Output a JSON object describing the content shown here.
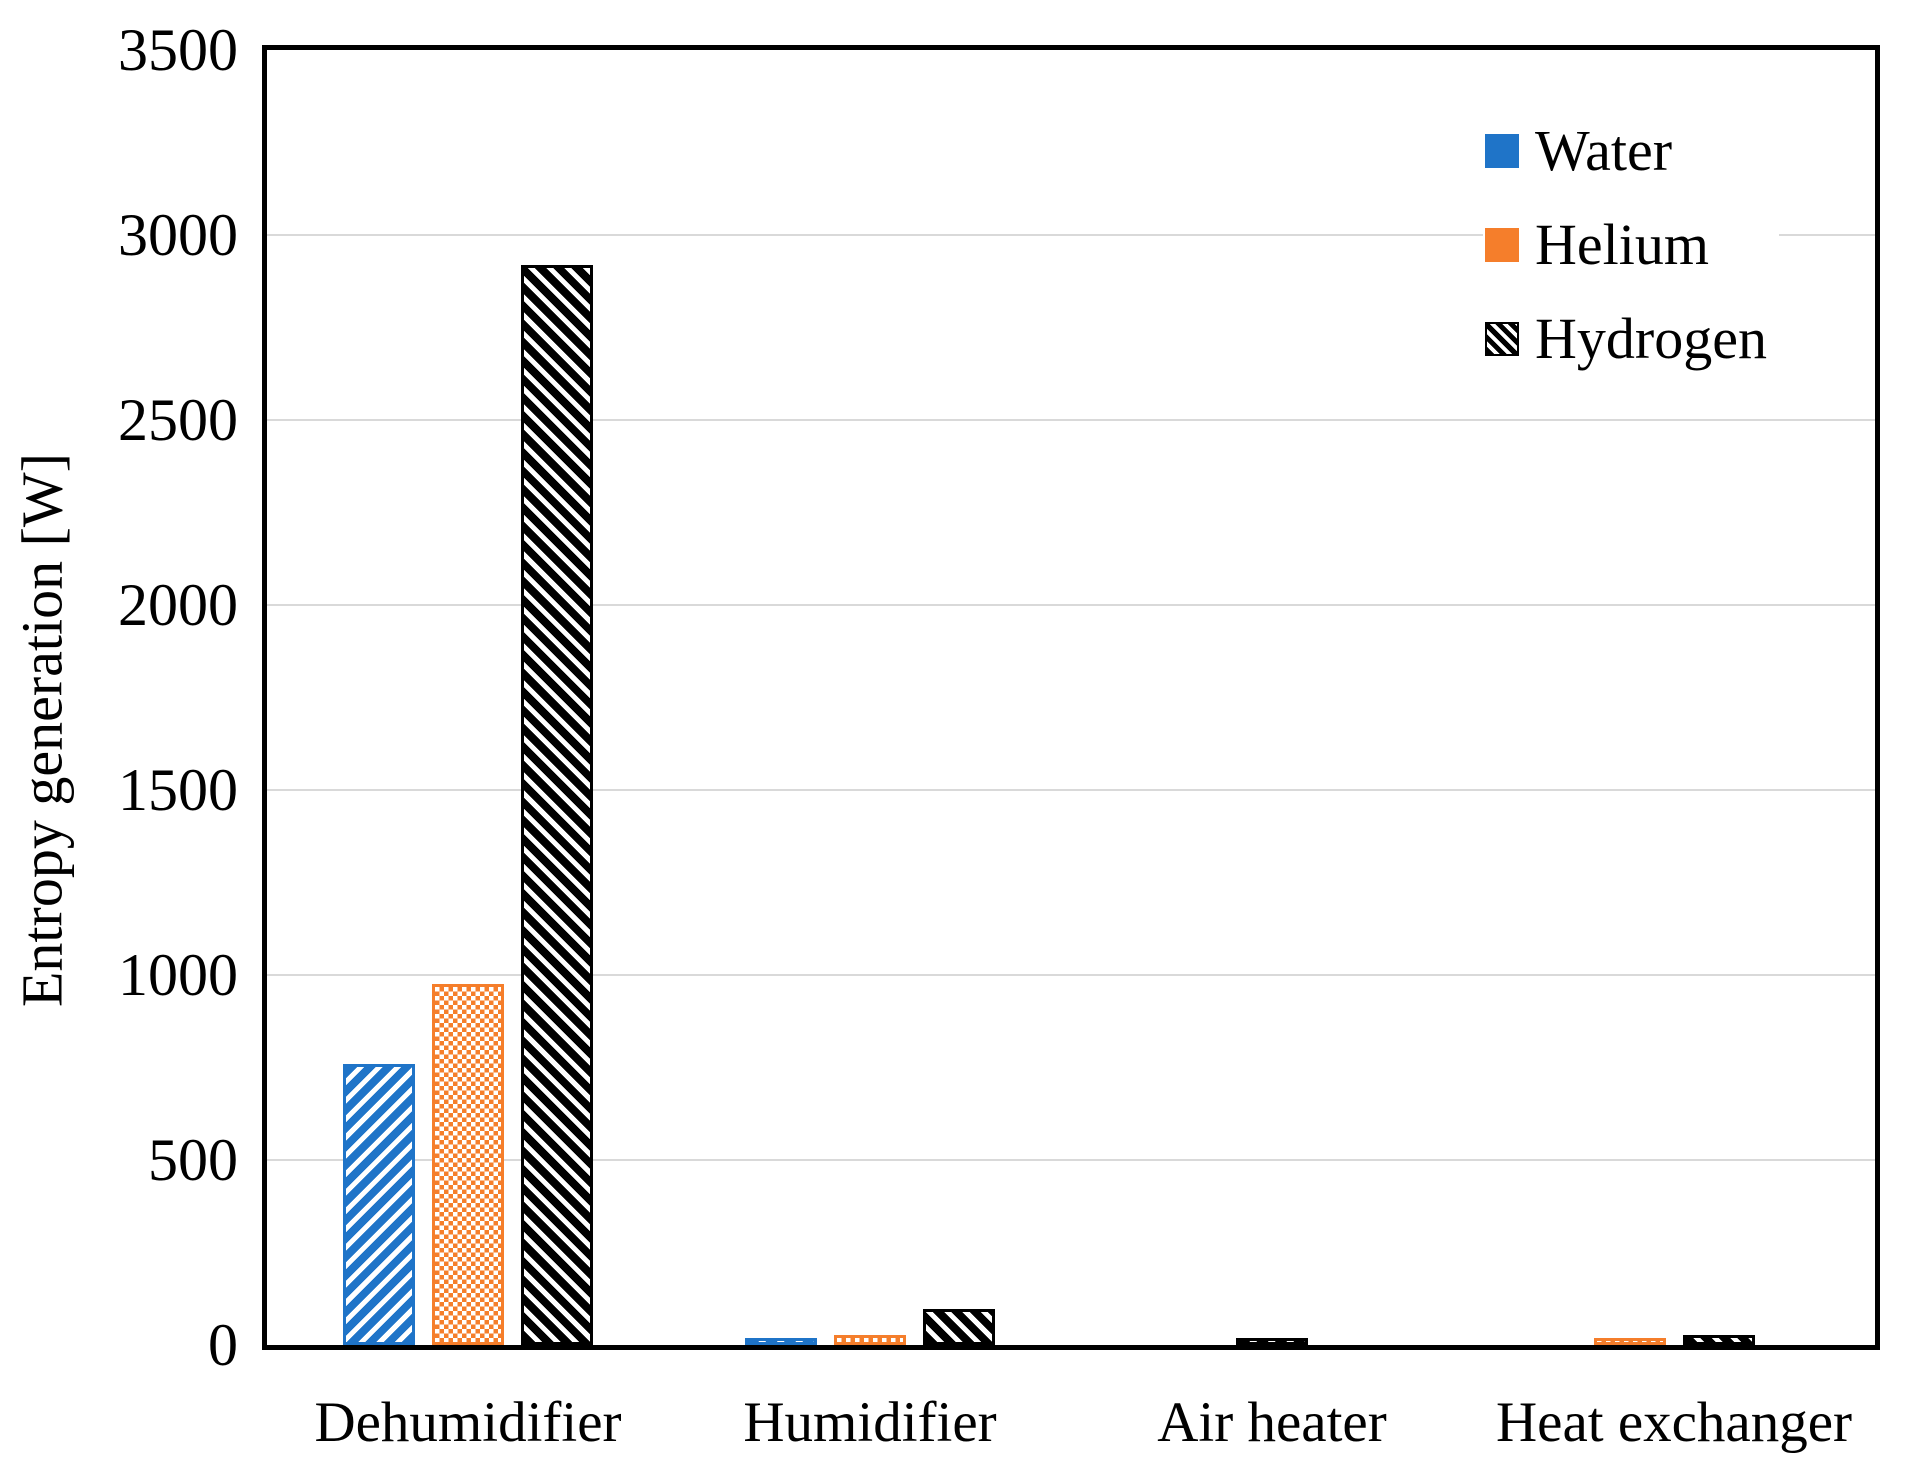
{
  "figure": {
    "background": "#ffffff",
    "axis_color": "#000000",
    "gridline_color": "#d9d9d9"
  },
  "chart_data": {
    "type": "bar",
    "title": "",
    "xlabel": "",
    "ylabel": "Entropy generation [W]",
    "categories": [
      "Dehumidifier",
      "Humidifier",
      "Air heater",
      "Heat exchanger"
    ],
    "series": [
      {
        "name": "Water",
        "color": "#1f74c8",
        "pattern": "diagonal-up",
        "values": [
          760,
          20,
          0,
          0
        ]
      },
      {
        "name": "Helium",
        "color": "#f57e2b",
        "pattern": "checker",
        "values": [
          975,
          28,
          0,
          19
        ]
      },
      {
        "name": "Hydrogen",
        "color": "#000000",
        "pattern": "diagonal-down",
        "values": [
          2920,
          97,
          18,
          27
        ]
      }
    ],
    "ylim": [
      0,
      3500
    ],
    "yticks": [
      0,
      500,
      1000,
      1500,
      2000,
      2500,
      3000,
      3500
    ],
    "grid": true,
    "legend_position": "top-right",
    "legend": [
      "Water",
      "Helium",
      "Hydrogen"
    ]
  }
}
